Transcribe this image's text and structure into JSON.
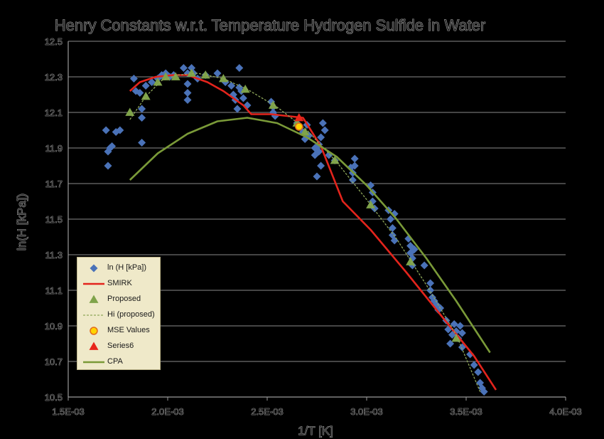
{
  "chart_data": {
    "type": "scatter",
    "title": "Henry Constants w.r.t. Temperature Hydrogen Sulfide in Water",
    "xlabel": "1/T [K]",
    "ylabel": "ln(H [kPa])",
    "xlim": [
      0.0015,
      0.004
    ],
    "ylim": [
      10.5,
      12.5
    ],
    "xticks": [
      0.0015,
      0.002,
      0.0025,
      0.003,
      0.0035,
      0.004
    ],
    "xtick_labels": [
      "1.5E-03",
      "2.0E-03",
      "2.5E-03",
      "3.0E-03",
      "3.5E-03",
      "4.0E-03"
    ],
    "yticks": [
      10.5,
      10.7,
      10.9,
      11.1,
      11.3,
      11.5,
      11.7,
      11.9,
      12.1,
      12.3,
      12.5
    ],
    "ytick_labels": [
      "10.5",
      "10.7",
      "10.9",
      "11.1",
      "11.3",
      "11.5",
      "11.7",
      "11.9",
      "12.1",
      "12.3",
      "12.5"
    ],
    "grid": "horizontal",
    "legend_position": "bottom-left",
    "series": [
      {
        "name": "ln (H [kPa])",
        "kind": "scatter",
        "marker": "diamond",
        "color": "#4a72b8",
        "points": [
          [
            0.00169,
            12.0
          ],
          [
            0.0017,
            11.88
          ],
          [
            0.0017,
            11.8
          ],
          [
            0.00171,
            11.9
          ],
          [
            0.00172,
            11.91
          ],
          [
            0.00174,
            11.99
          ],
          [
            0.00176,
            12.0
          ],
          [
            0.00183,
            12.29
          ],
          [
            0.00184,
            12.22
          ],
          [
            0.00186,
            12.21
          ],
          [
            0.00187,
            12.12
          ],
          [
            0.00187,
            12.07
          ],
          [
            0.00187,
            11.93
          ],
          [
            0.00189,
            12.25
          ],
          [
            0.00192,
            12.27
          ],
          [
            0.00195,
            12.29
          ],
          [
            0.00197,
            12.31
          ],
          [
            0.00199,
            12.32
          ],
          [
            0.00201,
            12.3
          ],
          [
            0.00203,
            12.31
          ],
          [
            0.00208,
            12.35
          ],
          [
            0.0021,
            12.32
          ],
          [
            0.0021,
            12.26
          ],
          [
            0.0021,
            12.21
          ],
          [
            0.0021,
            12.17
          ],
          [
            0.00212,
            12.35
          ],
          [
            0.00213,
            12.32
          ],
          [
            0.00215,
            12.29
          ],
          [
            0.00219,
            12.31
          ],
          [
            0.00225,
            12.32
          ],
          [
            0.00229,
            12.27
          ],
          [
            0.00232,
            12.25
          ],
          [
            0.00233,
            12.2
          ],
          [
            0.00234,
            12.17
          ],
          [
            0.00235,
            12.12
          ],
          [
            0.00236,
            12.24
          ],
          [
            0.00236,
            12.35
          ],
          [
            0.00237,
            12.22
          ],
          [
            0.00238,
            12.18
          ],
          [
            0.0024,
            12.14
          ],
          [
            0.00252,
            12.16
          ],
          [
            0.00253,
            12.13
          ],
          [
            0.00253,
            12.1
          ],
          [
            0.00254,
            12.08
          ],
          [
            0.00265,
            12.04
          ],
          [
            0.00268,
            11.99
          ],
          [
            0.00269,
            11.95
          ],
          [
            0.0027,
            12.03
          ],
          [
            0.00271,
            11.97
          ],
          [
            0.00274,
            11.9
          ],
          [
            0.00274,
            11.86
          ],
          [
            0.00275,
            11.74
          ],
          [
            0.00276,
            11.92
          ],
          [
            0.00276,
            11.88
          ],
          [
            0.00277,
            11.8
          ],
          [
            0.00277,
            11.96
          ],
          [
            0.00278,
            12.04
          ],
          [
            0.00279,
            12.0
          ],
          [
            0.00281,
            11.86
          ],
          [
            0.00284,
            11.83
          ],
          [
            0.00292,
            11.79
          ],
          [
            0.00293,
            11.76
          ],
          [
            0.00293,
            11.72
          ],
          [
            0.00294,
            11.84
          ],
          [
            0.00294,
            11.8
          ],
          [
            0.00302,
            11.69
          ],
          [
            0.00303,
            11.65
          ],
          [
            0.00303,
            11.6
          ],
          [
            0.00304,
            11.56
          ],
          [
            0.00311,
            11.55
          ],
          [
            0.00312,
            11.5
          ],
          [
            0.00313,
            11.45
          ],
          [
            0.00313,
            11.41
          ],
          [
            0.00314,
            11.38
          ],
          [
            0.00314,
            11.53
          ],
          [
            0.00321,
            11.39
          ],
          [
            0.00322,
            11.35
          ],
          [
            0.00322,
            11.31
          ],
          [
            0.00323,
            11.28
          ],
          [
            0.00323,
            11.24
          ],
          [
            0.00324,
            11.33
          ],
          [
            0.00329,
            11.24
          ],
          [
            0.00332,
            11.14
          ],
          [
            0.00332,
            11.1
          ],
          [
            0.00333,
            11.06
          ],
          [
            0.00334,
            11.04
          ],
          [
            0.00335,
            11.02
          ],
          [
            0.00336,
            10.99
          ],
          [
            0.00337,
            11.0
          ],
          [
            0.0034,
            10.93
          ],
          [
            0.00341,
            10.88
          ],
          [
            0.00342,
            10.8
          ],
          [
            0.00343,
            10.85
          ],
          [
            0.00344,
            10.91
          ],
          [
            0.00345,
            10.87
          ],
          [
            0.00346,
            10.83
          ],
          [
            0.00347,
            10.9
          ],
          [
            0.00348,
            10.86
          ],
          [
            0.00348,
            10.78
          ],
          [
            0.00352,
            10.74
          ],
          [
            0.00354,
            10.68
          ],
          [
            0.00356,
            10.64
          ],
          [
            0.00357,
            10.58
          ],
          [
            0.00358,
            10.55
          ],
          [
            0.00359,
            10.53
          ]
        ]
      },
      {
        "name": "SMIRK",
        "kind": "line",
        "color": "#e3241c",
        "points": [
          [
            0.00181,
            12.22
          ],
          [
            0.00186,
            12.27
          ],
          [
            0.00194,
            12.3
          ],
          [
            0.00203,
            12.31
          ],
          [
            0.0021,
            12.31
          ],
          [
            0.0022,
            12.27
          ],
          [
            0.00228,
            12.22
          ],
          [
            0.00238,
            12.14
          ],
          [
            0.00242,
            12.09
          ],
          [
            0.00252,
            12.09
          ],
          [
            0.00268,
            12.07
          ],
          [
            0.00277,
            11.91
          ],
          [
            0.00288,
            11.6
          ],
          [
            0.00302,
            11.44
          ],
          [
            0.0032,
            11.2
          ],
          [
            0.00338,
            10.95
          ],
          [
            0.00354,
            10.73
          ],
          [
            0.00365,
            10.54
          ]
        ]
      },
      {
        "name": "Proposed",
        "kind": "scatter",
        "marker": "triangle",
        "color": "#7fa34a",
        "points": [
          [
            0.00181,
            12.1
          ],
          [
            0.00189,
            12.19
          ],
          [
            0.00195,
            12.27
          ],
          [
            0.00199,
            12.3
          ],
          [
            0.00204,
            12.3
          ],
          [
            0.00212,
            12.32
          ],
          [
            0.00219,
            12.31
          ],
          [
            0.00228,
            12.29
          ],
          [
            0.00239,
            12.23
          ],
          [
            0.00253,
            12.14
          ],
          [
            0.00265,
            12.04
          ],
          [
            0.00269,
            11.99
          ],
          [
            0.00284,
            11.83
          ],
          [
            0.00302,
            11.58
          ],
          [
            0.00322,
            11.26
          ],
          [
            0.00345,
            10.83
          ]
        ]
      },
      {
        "name": "Hi (proposed)",
        "kind": "line",
        "dashed": true,
        "color": "#8fa85a",
        "points": [
          [
            0.00181,
            12.06
          ],
          [
            0.00189,
            12.19
          ],
          [
            0.00197,
            12.28
          ],
          [
            0.00205,
            12.31
          ],
          [
            0.00215,
            12.32
          ],
          [
            0.00228,
            12.29
          ],
          [
            0.0024,
            12.23
          ],
          [
            0.00255,
            12.13
          ],
          [
            0.0027,
            12.0
          ],
          [
            0.00285,
            11.82
          ],
          [
            0.003,
            11.61
          ],
          [
            0.00315,
            11.39
          ],
          [
            0.0033,
            11.13
          ],
          [
            0.00345,
            10.85
          ],
          [
            0.00357,
            10.53
          ]
        ]
      },
      {
        "name": "MSE Values",
        "kind": "scatter",
        "marker": "circle",
        "color": "#ffd400",
        "stroke": "#e36b1c",
        "points": [
          [
            0.00266,
            12.02
          ]
        ]
      },
      {
        "name": "Series6",
        "kind": "scatter",
        "marker": "triangle",
        "color": "#e8261a",
        "points": [
          [
            0.00266,
            12.07
          ]
        ]
      },
      {
        "name": "CPA",
        "kind": "line",
        "color": "#7a9a38",
        "points": [
          [
            0.00181,
            11.72
          ],
          [
            0.00195,
            11.87
          ],
          [
            0.0021,
            11.98
          ],
          [
            0.00225,
            12.05
          ],
          [
            0.0024,
            12.07
          ],
          [
            0.00255,
            12.04
          ],
          [
            0.0027,
            11.96
          ],
          [
            0.00285,
            11.85
          ],
          [
            0.003,
            11.69
          ],
          [
            0.00315,
            11.5
          ],
          [
            0.0033,
            11.28
          ],
          [
            0.00345,
            11.04
          ],
          [
            0.00362,
            10.75
          ]
        ]
      }
    ]
  }
}
